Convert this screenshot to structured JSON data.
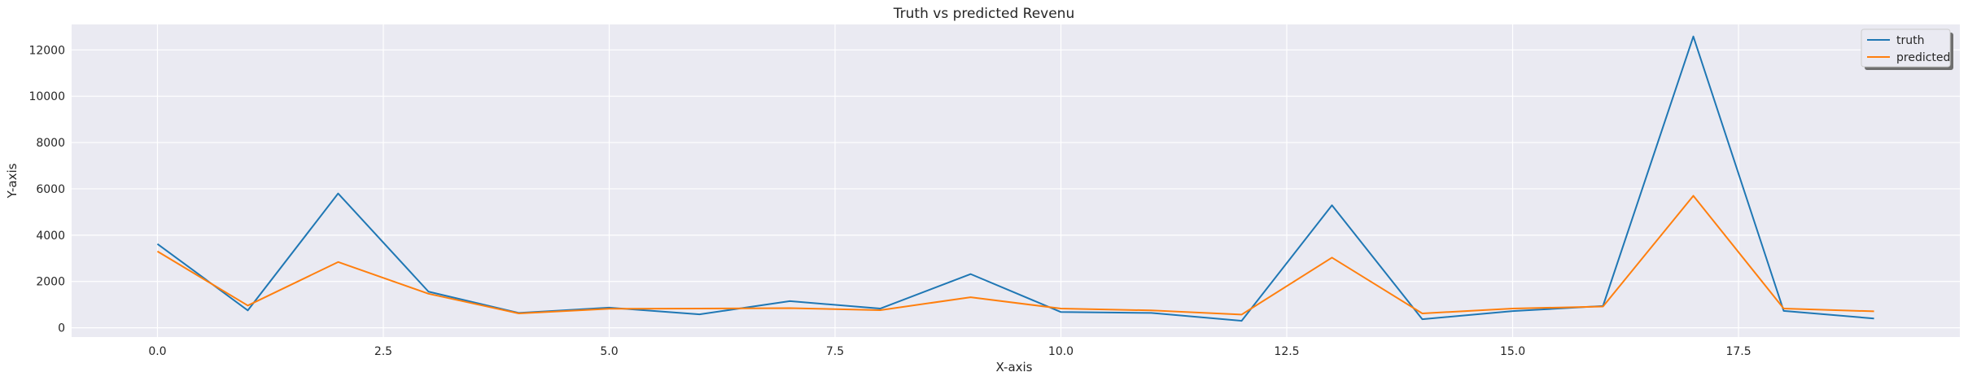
{
  "chart_data": {
    "type": "line",
    "title": "Truth vs predicted Revenu",
    "xlabel": "X-axis",
    "ylabel": "Y-axis",
    "x": [
      0,
      1,
      2,
      3,
      4,
      5,
      6,
      7,
      8,
      9,
      10,
      11,
      12,
      13,
      14,
      15,
      16,
      17,
      18,
      19
    ],
    "xlim": [
      -0.95,
      19.95
    ],
    "ylim": [
      -400,
      13100
    ],
    "xticks": [
      0.0,
      2.5,
      5.0,
      7.5,
      10.0,
      12.5,
      15.0,
      17.5
    ],
    "xtick_labels": [
      "0.0",
      "2.5",
      "5.0",
      "7.5",
      "10.0",
      "12.5",
      "15.0",
      "17.5"
    ],
    "yticks": [
      0,
      2000,
      4000,
      6000,
      8000,
      10000,
      12000
    ],
    "ytick_labels": [
      "0",
      "2000",
      "4000",
      "6000",
      "8000",
      "10000",
      "12000"
    ],
    "grid": true,
    "legend_position": "top-right",
    "series": [
      {
        "name": "truth",
        "color": "#1f77b4",
        "values": [
          3620,
          750,
          5800,
          1560,
          640,
          870,
          580,
          1150,
          830,
          2320,
          680,
          640,
          300,
          5290,
          370,
          720,
          940,
          12580,
          730,
          400
        ]
      },
      {
        "name": "predicted",
        "color": "#ff7f0e",
        "values": [
          3300,
          960,
          2840,
          1470,
          620,
          820,
          830,
          850,
          760,
          1320,
          830,
          750,
          570,
          3030,
          620,
          830,
          920,
          5700,
          830,
          710
        ]
      }
    ]
  },
  "colors": {
    "plot_background": "#eaeaf2",
    "grid": "#ffffff"
  }
}
